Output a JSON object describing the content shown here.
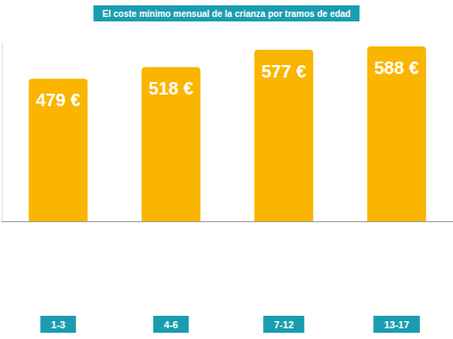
{
  "chart_data": {
    "type": "bar",
    "title": "El coste mínimo mensual de la crianza por tramos de edad",
    "categories": [
      "1-3",
      "4-6",
      "7-12",
      "13-17"
    ],
    "values": [
      479,
      518,
      577,
      588
    ],
    "value_labels": [
      "479 €",
      "518 €",
      "577 €",
      "588 €"
    ],
    "color": "#f9b500",
    "ylim": [
      0,
      600
    ],
    "data_labels": true,
    "tick_labels": "x",
    "grid": false
  }
}
